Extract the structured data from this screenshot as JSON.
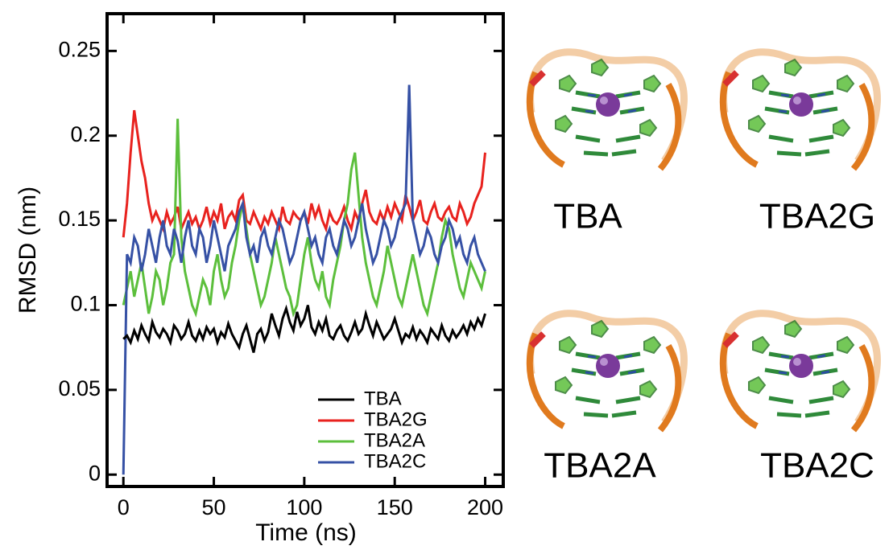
{
  "chart_data": {
    "type": "line",
    "xlabel": "Time (ns)",
    "ylabel": "RMSD (nm)",
    "x": [
      0,
      2,
      4,
      6,
      8,
      10,
      12,
      14,
      16,
      18,
      20,
      22,
      24,
      26,
      28,
      30,
      32,
      34,
      36,
      38,
      40,
      42,
      44,
      46,
      48,
      50,
      52,
      54,
      56,
      58,
      60,
      62,
      64,
      66,
      68,
      70,
      72,
      74,
      76,
      78,
      80,
      82,
      84,
      86,
      88,
      90,
      92,
      94,
      96,
      98,
      100,
      102,
      104,
      106,
      108,
      110,
      112,
      114,
      116,
      118,
      120,
      122,
      124,
      126,
      128,
      130,
      132,
      134,
      136,
      138,
      140,
      142,
      144,
      146,
      148,
      150,
      152,
      154,
      156,
      158,
      160,
      162,
      164,
      166,
      168,
      170,
      172,
      174,
      176,
      178,
      180,
      182,
      184,
      186,
      188,
      190,
      192,
      194,
      196,
      198,
      200
    ],
    "series": [
      {
        "name": "TBA2G",
        "color": "#e8221e",
        "values": [
          0.14,
          0.16,
          0.19,
          0.215,
          0.2,
          0.185,
          0.175,
          0.16,
          0.15,
          0.155,
          0.15,
          0.145,
          0.155,
          0.148,
          0.152,
          0.158,
          0.145,
          0.15,
          0.155,
          0.148,
          0.152,
          0.145,
          0.15,
          0.158,
          0.148,
          0.155,
          0.15,
          0.16,
          0.145,
          0.152,
          0.155,
          0.15,
          0.162,
          0.165,
          0.15,
          0.148,
          0.155,
          0.15,
          0.145,
          0.152,
          0.148,
          0.155,
          0.15,
          0.145,
          0.158,
          0.15,
          0.148,
          0.155,
          0.152,
          0.15,
          0.155,
          0.148,
          0.16,
          0.152,
          0.158,
          0.15,
          0.145,
          0.155,
          0.15,
          0.148,
          0.152,
          0.158,
          0.15,
          0.145,
          0.155,
          0.15,
          0.16,
          0.168,
          0.155,
          0.15,
          0.148,
          0.155,
          0.15,
          0.158,
          0.152,
          0.16,
          0.155,
          0.15,
          0.165,
          0.158,
          0.15,
          0.155,
          0.162,
          0.15,
          0.148,
          0.155,
          0.16,
          0.152,
          0.15,
          0.155,
          0.158,
          0.152,
          0.15,
          0.16,
          0.155,
          0.148,
          0.152,
          0.16,
          0.165,
          0.17,
          0.19
        ]
      },
      {
        "name": "TBA2A",
        "color": "#5cbf3c",
        "values": [
          0.1,
          0.11,
          0.12,
          0.105,
          0.115,
          0.125,
          0.11,
          0.095,
          0.105,
          0.12,
          0.115,
          0.1,
          0.11,
          0.125,
          0.13,
          0.21,
          0.14,
          0.12,
          0.11,
          0.1,
          0.095,
          0.105,
          0.115,
          0.11,
          0.1,
          0.12,
          0.13,
          0.115,
          0.105,
          0.11,
          0.125,
          0.135,
          0.15,
          0.16,
          0.145,
          0.13,
          0.12,
          0.11,
          0.1,
          0.105,
          0.115,
          0.125,
          0.14,
          0.13,
          0.12,
          0.11,
          0.105,
          0.095,
          0.1,
          0.115,
          0.13,
          0.14,
          0.125,
          0.115,
          0.11,
          0.12,
          0.105,
          0.1,
          0.115,
          0.125,
          0.135,
          0.15,
          0.16,
          0.18,
          0.19,
          0.165,
          0.14,
          0.125,
          0.115,
          0.105,
          0.1,
          0.11,
          0.12,
          0.135,
          0.125,
          0.115,
          0.105,
          0.1,
          0.11,
          0.12,
          0.13,
          0.12,
          0.11,
          0.1,
          0.095,
          0.105,
          0.115,
          0.125,
          0.14,
          0.15,
          0.145,
          0.13,
          0.12,
          0.11,
          0.105,
          0.115,
          0.125,
          0.12,
          0.115,
          0.11,
          0.12
        ]
      },
      {
        "name": "TBA2C",
        "color": "#3651a5",
        "values": [
          0.0,
          0.13,
          0.125,
          0.14,
          0.135,
          0.12,
          0.13,
          0.145,
          0.135,
          0.125,
          0.14,
          0.15,
          0.135,
          0.13,
          0.145,
          0.138,
          0.125,
          0.14,
          0.15,
          0.135,
          0.13,
          0.145,
          0.14,
          0.125,
          0.135,
          0.15,
          0.14,
          0.13,
          0.12,
          0.135,
          0.14,
          0.145,
          0.155,
          0.16,
          0.14,
          0.13,
          0.135,
          0.125,
          0.14,
          0.145,
          0.135,
          0.13,
          0.14,
          0.15,
          0.145,
          0.135,
          0.125,
          0.13,
          0.14,
          0.15,
          0.155,
          0.145,
          0.135,
          0.14,
          0.13,
          0.125,
          0.14,
          0.145,
          0.135,
          0.13,
          0.14,
          0.15,
          0.145,
          0.135,
          0.14,
          0.15,
          0.16,
          0.145,
          0.135,
          0.125,
          0.13,
          0.14,
          0.15,
          0.145,
          0.135,
          0.14,
          0.15,
          0.155,
          0.16,
          0.23,
          0.15,
          0.14,
          0.13,
          0.135,
          0.145,
          0.14,
          0.13,
          0.125,
          0.135,
          0.14,
          0.15,
          0.145,
          0.135,
          0.14,
          0.13,
          0.125,
          0.135,
          0.14,
          0.13,
          0.125,
          0.12
        ]
      },
      {
        "name": "TBA",
        "color": "#000000",
        "values": [
          0.08,
          0.082,
          0.078,
          0.085,
          0.08,
          0.088,
          0.083,
          0.079,
          0.09,
          0.084,
          0.081,
          0.086,
          0.083,
          0.078,
          0.088,
          0.085,
          0.08,
          0.083,
          0.09,
          0.082,
          0.079,
          0.085,
          0.08,
          0.087,
          0.083,
          0.086,
          0.078,
          0.084,
          0.081,
          0.089,
          0.083,
          0.079,
          0.075,
          0.083,
          0.088,
          0.08,
          0.072,
          0.083,
          0.086,
          0.079,
          0.084,
          0.095,
          0.088,
          0.082,
          0.092,
          0.098,
          0.09,
          0.085,
          0.096,
          0.088,
          0.092,
          0.1,
          0.087,
          0.083,
          0.09,
          0.085,
          0.092,
          0.082,
          0.08,
          0.085,
          0.088,
          0.082,
          0.079,
          0.084,
          0.09,
          0.083,
          0.086,
          0.095,
          0.088,
          0.082,
          0.09,
          0.085,
          0.08,
          0.083,
          0.086,
          0.092,
          0.085,
          0.078,
          0.083,
          0.081,
          0.087,
          0.08,
          0.085,
          0.082,
          0.078,
          0.086,
          0.083,
          0.08,
          0.088,
          0.082,
          0.079,
          0.085,
          0.081,
          0.084,
          0.088,
          0.083,
          0.09,
          0.086,
          0.092,
          0.088,
          0.095
        ]
      }
    ],
    "legend_order": [
      "TBA",
      "TBA2G",
      "TBA2A",
      "TBA2C"
    ],
    "legend": "lower right",
    "xlim": [
      -9,
      210
    ],
    "ylim": [
      -0.007,
      0.272
    ],
    "xticks": [
      0,
      50,
      100,
      150,
      200
    ],
    "yticks": [
      0,
      0.05,
      0.1,
      0.15,
      0.2,
      0.25
    ]
  },
  "panels": [
    {
      "label": "TBA"
    },
    {
      "label": "TBA2G"
    },
    {
      "label": "TBA2A"
    },
    {
      "label": "TBA2C"
    }
  ]
}
